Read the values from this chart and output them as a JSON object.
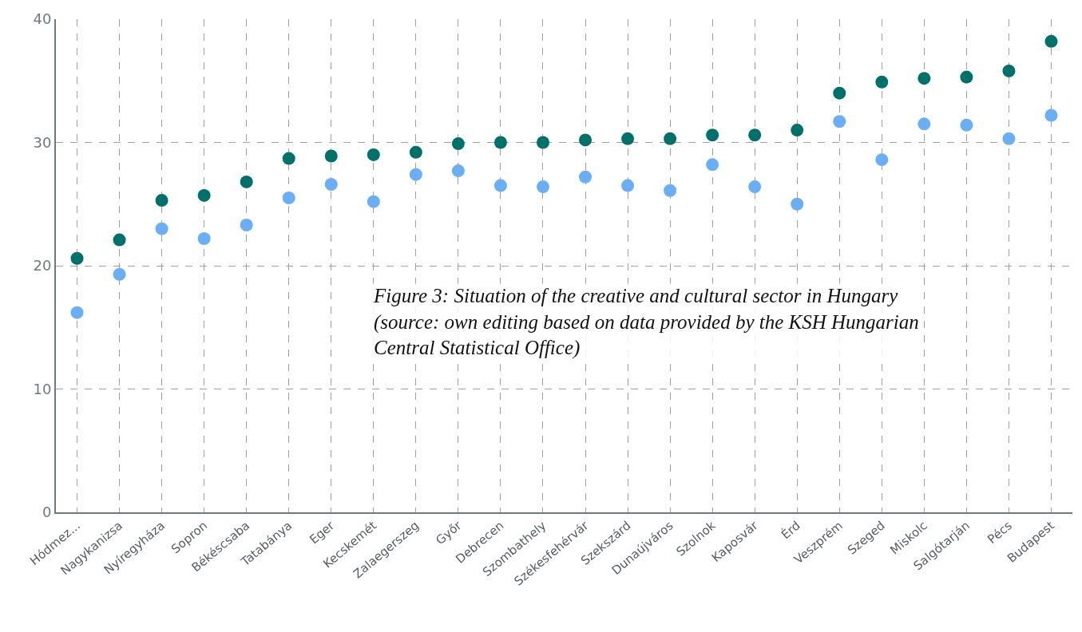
{
  "chart_data": {
    "type": "scatter",
    "categories": [
      "Hódmez...",
      "Nagykanizsa",
      "Nyíregyháza",
      "Sopron",
      "Békéscsaba",
      "Tatabánya",
      "Eger",
      "Kecskemét",
      "Zalaegerszeg",
      "Győr",
      "Debrecen",
      "Szombathely",
      "Székesfehérvár",
      "Szekszárd",
      "Dunaújváros",
      "Szolnok",
      "Kaposvár",
      "Érd",
      "Veszprém",
      "Szeged",
      "Miskolc",
      "Salgótarján",
      "Pécs",
      "Budapest"
    ],
    "series": [
      {
        "color": "#6aaef5",
        "values": [
          16.2,
          19.3,
          23.0,
          22.2,
          23.3,
          25.5,
          26.6,
          25.2,
          27.4,
          27.7,
          26.5,
          26.4,
          27.2,
          26.5,
          26.1,
          28.2,
          26.4,
          25.0,
          31.7,
          28.6,
          31.5,
          31.4,
          30.3,
          32.2
        ]
      },
      {
        "color": "#00706b",
        "values": [
          20.6,
          22.1,
          25.3,
          25.7,
          26.8,
          28.7,
          28.9,
          29.0,
          29.2,
          29.9,
          30.0,
          30.0,
          30.2,
          30.3,
          30.3,
          30.6,
          30.6,
          31.0,
          34.0,
          34.9,
          35.2,
          35.3,
          35.8,
          38.2
        ]
      }
    ],
    "ylim": [
      0,
      40
    ],
    "yticks": [
      0,
      10,
      20,
      30,
      40
    ],
    "grid": true,
    "marker": "circle",
    "annotations": [
      "Figure 3: Situation of the creative and cultural sector in Hungary (source: own editing based on data provided by the KSH Hungarian Central Statistical Office)"
    ]
  }
}
